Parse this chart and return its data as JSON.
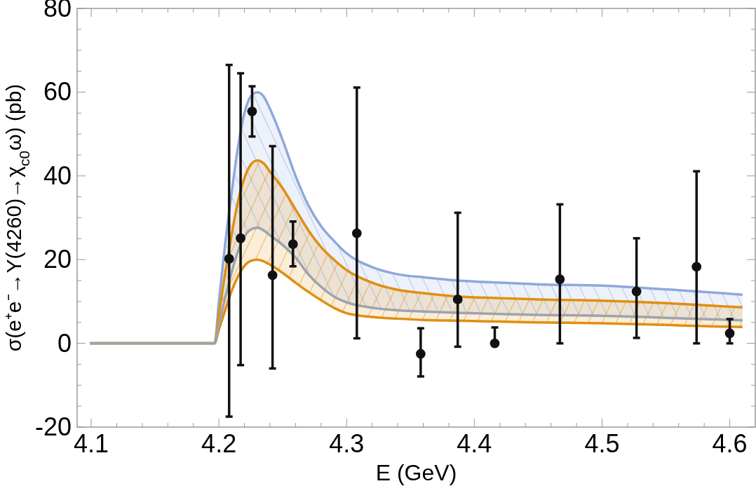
{
  "chart_data": {
    "type": "line",
    "xlabel": "E (GeV)",
    "ylabel": "σ(e⁺e⁻→Y(4260)→χ$_{c0}$ω) (pb)",
    "x": [
      4.099,
      4.1966,
      4.2,
      4.205,
      4.21,
      4.215,
      4.22,
      4.225,
      4.23,
      4.235,
      4.24,
      4.25,
      4.26,
      4.27,
      4.28,
      4.29,
      4.3,
      4.32,
      4.34,
      4.36,
      4.387,
      4.42,
      4.45,
      4.5,
      4.55,
      4.58,
      4.61
    ],
    "series": [
      {
        "color": "#8fa8dc",
        "values": [
          0,
          0,
          10,
          24,
          36,
          47,
          55,
          59,
          60,
          59,
          56,
          48.5,
          40,
          33,
          28,
          24.5,
          21.5,
          18.2,
          16.5,
          15.8,
          15,
          14.5,
          14.1,
          13.8,
          12.9,
          12.3,
          11.6
        ],
        "upper": [
          0,
          0,
          10,
          24,
          36,
          47,
          55,
          59,
          60,
          59,
          56,
          48.5,
          40,
          33,
          28,
          24.5,
          21.5,
          18.2,
          16.5,
          15.8,
          15,
          14.5,
          14.1,
          13.8,
          12.9,
          12.3,
          11.6
        ],
        "lower": [
          0,
          0,
          4.5,
          11,
          17,
          22,
          25.5,
          27.2,
          27.6,
          27,
          25.8,
          23.5,
          20.5,
          16.5,
          13.5,
          11.2,
          9.8,
          8.5,
          7.9,
          7.6,
          7.3,
          7,
          6.8,
          6.6,
          6.1,
          5.8,
          5.5
        ]
      },
      {
        "color": "#e08f10",
        "values": [
          0,
          0,
          7,
          17,
          26,
          34,
          39.5,
          42.7,
          43.7,
          43,
          41,
          37,
          32,
          27,
          23,
          20,
          17.5,
          14.5,
          12.8,
          12,
          11.2,
          10.8,
          10.5,
          10.2,
          9.6,
          9.1,
          8.6
        ],
        "upper": [
          0,
          0,
          7,
          17,
          26,
          34,
          39.5,
          42.7,
          43.7,
          43,
          41,
          37,
          32,
          27,
          23,
          20,
          17.5,
          14.5,
          12.8,
          12,
          11.2,
          10.8,
          10.5,
          10.2,
          9.6,
          9.1,
          8.6
        ],
        "lower": [
          0,
          0,
          3.3,
          8,
          12.5,
          16,
          18.5,
          19.7,
          20,
          19.6,
          18.8,
          16.8,
          14.5,
          12.3,
          10.3,
          8.5,
          7.2,
          6.3,
          5.9,
          5.6,
          5.4,
          5.2,
          5,
          4.8,
          4.4,
          4.1,
          3.9
        ]
      },
      {
        "color": "#e08f10",
        "values": [
          0,
          0,
          3.3,
          8,
          12.5,
          16,
          18.5,
          19.7,
          20,
          19.6,
          18.8,
          16.8,
          14.5,
          12.3,
          10.3,
          8.5,
          7.2,
          6.3,
          5.9,
          5.6,
          5.4,
          5.2,
          5,
          4.8,
          4.4,
          4.1,
          3.9
        ]
      },
      {
        "color": "#9ba4ae",
        "values": [
          0,
          0,
          4.5,
          11,
          17,
          22,
          25.5,
          27.2,
          27.6,
          27,
          25.8,
          23.5,
          20.5,
          16.5,
          13.5,
          11.2,
          9.8,
          8.5,
          7.9,
          7.6,
          7.3,
          7,
          6.8,
          6.6,
          6.1,
          5.8,
          5.5
        ]
      },
      {
        "type": "scatter",
        "color": "#111111",
        "marker": "circle",
        "x": [
          4.208,
          4.217,
          4.226,
          4.242,
          4.258,
          4.308,
          4.358,
          4.387,
          4.416,
          4.467,
          4.527,
          4.574,
          4.6
        ],
        "values": [
          20.2,
          25.1,
          55.4,
          16.3,
          23.7,
          26.3,
          -2.5,
          10.5,
          0,
          15.3,
          12.4,
          18.3,
          2.4
        ],
        "errors": [
          [
            -17.5,
            66.5
          ],
          [
            -5.2,
            64.5
          ],
          [
            49.4,
            61.4
          ],
          [
            -6,
            47.1
          ],
          [
            18.4,
            29.1
          ],
          [
            1.2,
            61.1
          ],
          [
            -7.9,
            3.6
          ],
          [
            -0.8,
            31.2
          ],
          [
            0,
            3.8
          ],
          [
            0,
            33.2
          ],
          [
            1.3,
            25.1
          ],
          [
            0,
            41.1
          ],
          [
            0,
            5.8
          ]
        ]
      }
    ],
    "xlim": [
      4.089,
      4.62
    ],
    "ylim": [
      -20,
      80
    ],
    "xticks": [
      4.1,
      {
        "value": 4.12,
        "label": null
      },
      {
        "value": 4.14,
        "label": null
      },
      {
        "value": 4.16,
        "label": null
      },
      {
        "value": 4.18,
        "label": null
      },
      4.2,
      {
        "value": 4.22,
        "label": null
      },
      {
        "value": 4.24,
        "label": null
      },
      {
        "value": 4.26,
        "label": null
      },
      {
        "value": 4.28,
        "label": null
      },
      4.3,
      {
        "value": 4.32,
        "label": null
      },
      {
        "value": 4.34,
        "label": null
      },
      {
        "value": 4.36,
        "label": null
      },
      {
        "value": 4.38,
        "label": null
      },
      4.4,
      {
        "value": 4.42,
        "label": null
      },
      {
        "value": 4.44,
        "label": null
      },
      {
        "value": 4.46,
        "label": null
      },
      {
        "value": 4.48,
        "label": null
      },
      4.5,
      {
        "value": 4.52,
        "label": null
      },
      {
        "value": 4.54,
        "label": null
      },
      {
        "value": 4.56,
        "label": null
      },
      {
        "value": 4.58,
        "label": null
      },
      4.6
    ],
    "yticks": [
      -20,
      {
        "value": -15,
        "label": null
      },
      {
        "value": -10,
        "label": null
      },
      {
        "value": -5,
        "label": null
      },
      0,
      {
        "value": 5,
        "label": null
      },
      {
        "value": 10,
        "label": null
      },
      {
        "value": 15,
        "label": null
      },
      20,
      {
        "value": 25,
        "label": null
      },
      {
        "value": 30,
        "label": null
      },
      {
        "value": 35,
        "label": null
      },
      40,
      {
        "value": 45,
        "label": null
      },
      {
        "value": 50,
        "label": null
      },
      {
        "value": 55,
        "label": null
      },
      60,
      {
        "value": 65,
        "label": null
      },
      {
        "value": 70,
        "label": null
      },
      {
        "value": 75,
        "label": null
      },
      80
    ],
    "grid": false
  }
}
